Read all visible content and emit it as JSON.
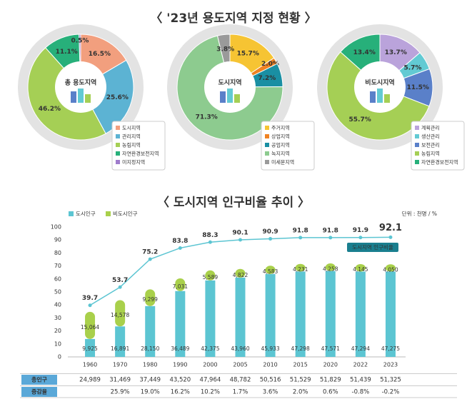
{
  "headings": [
    "〈 '23년 용도지역 지정 현황 〉",
    "〈 도시지역 인구비율 추이 〉"
  ],
  "chart_data": [
    {
      "type": "pie",
      "title": "총 용도지역",
      "categories": [
        "도시지역",
        "관리지역",
        "농림지역",
        "자연환경보전지역",
        "미지정지역"
      ],
      "values": [
        16.5,
        25.6,
        46.2,
        11.1,
        0.5
      ],
      "value_labels": [
        "16.5%",
        "25.6%",
        "46.2%",
        "11.1%",
        "0.5%"
      ],
      "colors": [
        "#f29f7e",
        "#5cb3d3",
        "#a5cf55",
        "#27b07a",
        "#9f7ccc"
      ]
    },
    {
      "type": "pie",
      "title": "도시지역",
      "categories": [
        "주거지역",
        "상업지역",
        "공업지역",
        "녹지지역",
        "미세분지역"
      ],
      "values": [
        15.7,
        2.0,
        7.2,
        71.3,
        3.8
      ],
      "value_labels": [
        "15.7%",
        "2.0%",
        "7.2%",
        "71.3%",
        "3.8%"
      ],
      "colors": [
        "#f6c433",
        "#f08222",
        "#1a8fa3",
        "#8dcb8f",
        "#9a9a9a"
      ]
    },
    {
      "type": "pie",
      "title": "비도시지역",
      "categories": [
        "계획관리",
        "생산관리",
        "보전관리",
        "농림지역",
        "자연환경보전지역"
      ],
      "values": [
        13.7,
        5.7,
        11.5,
        55.7,
        13.4
      ],
      "value_labels": [
        "13.7%",
        "5.7%",
        "11.5%",
        "55.7%",
        "13.4%"
      ],
      "colors": [
        "#baa3db",
        "#62cad3",
        "#5a80c9",
        "#a5cf55",
        "#27b07a"
      ]
    },
    {
      "type": "combo",
      "unit": "단위 : 천명 / %",
      "categories": [
        "1960",
        "1970",
        "1980",
        "1990",
        "2000",
        "2005",
        "2010",
        "2015",
        "2020",
        "2022",
        "2023"
      ],
      "ylim": [
        0,
        100
      ],
      "yticks": [
        0,
        10,
        20,
        30,
        40,
        50,
        60,
        70,
        80,
        90,
        100
      ],
      "grid": false,
      "y2lim": [
        0,
        72000
      ],
      "series": [
        {
          "name": "도시인구",
          "color": "#5cc5d2",
          "axis": "y2",
          "values": [
            9925,
            16891,
            28150,
            36489,
            42375,
            43960,
            45933,
            47298,
            47571,
            47294,
            47275
          ],
          "value_labels": [
            "9,925",
            "16,891",
            "28,150",
            "36,489",
            "42,375",
            "43,960",
            "45,933",
            "47,298",
            "47,571",
            "47,294",
            "47,275"
          ]
        },
        {
          "name": "비도시인구",
          "color": "#a9d04b",
          "axis": "y2",
          "values": [
            15064,
            14578,
            9299,
            7031,
            5589,
            4822,
            4583,
            4231,
            4258,
            4145,
            4050
          ],
          "value_labels": [
            "15,064",
            "14,578",
            "9,299",
            "7,031",
            "5,589",
            "4,822",
            "4,583",
            "4,231",
            "4,258",
            "4,145",
            "4,050"
          ]
        },
        {
          "name": "도시지역 인구비율",
          "type": "line",
          "color": "#5cc5d2",
          "values": [
            39.7,
            53.7,
            75.2,
            83.8,
            88.3,
            90.1,
            90.9,
            91.8,
            91.8,
            91.9,
            92.1
          ]
        }
      ]
    }
  ],
  "table": {
    "rows": [
      {
        "label": "총인구",
        "values": [
          24989,
          31469,
          37449,
          43520,
          47964,
          48782,
          50516,
          51529,
          51829,
          51439,
          51325
        ],
        "value_labels": [
          "24,989",
          "31,469",
          "37,449",
          "43,520",
          "47,964",
          "48,782",
          "50,516",
          "51,529",
          "51,829",
          "51,439",
          "51,325"
        ]
      },
      {
        "label": "증감율",
        "values": [
          null,
          25.9,
          19.0,
          16.2,
          10.2,
          1.7,
          3.6,
          2.0,
          0.6,
          -0.8,
          -0.2
        ],
        "value_labels": [
          null,
          "25.9%",
          "19.0%",
          "16.2%",
          "10.2%",
          "1.7%",
          "3.6%",
          "2.0%",
          "0.6%",
          "-0.8%",
          "-0.2%"
        ]
      }
    ]
  }
}
